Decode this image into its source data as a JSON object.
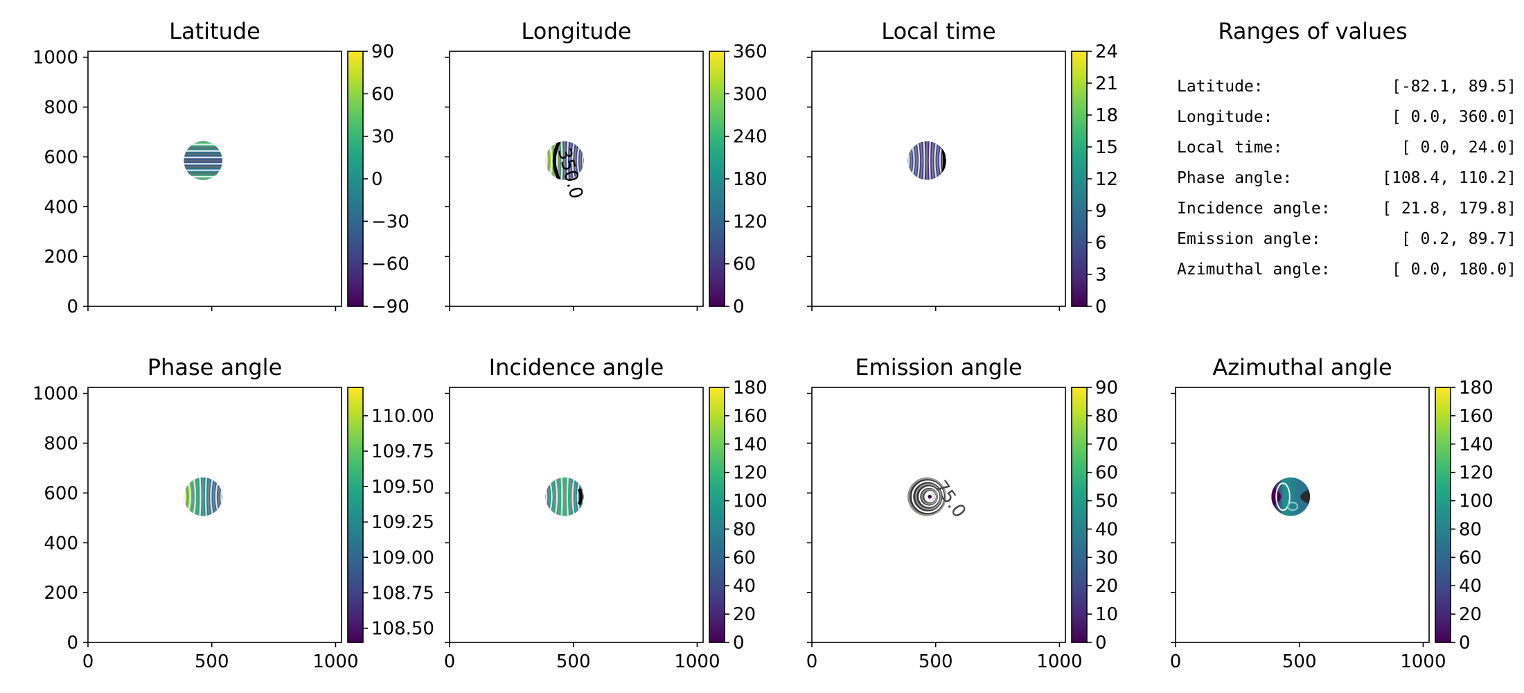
{
  "chart_data": [
    {
      "type": "heatmap",
      "title": "Latitude",
      "xlim": [
        0,
        1024
      ],
      "ylim": [
        0,
        1024
      ],
      "xticks": [
        0,
        500,
        1000
      ],
      "yticks": [
        0,
        200,
        400,
        600,
        800,
        1000
      ],
      "show_xticklabels": false,
      "show_yticklabels": true,
      "colorbar": {
        "range": [
          -90,
          90
        ],
        "ticks": [
          "90",
          "60",
          "30",
          "0",
          "−30",
          "−60",
          "−90"
        ],
        "tick_values": [
          90,
          60,
          30,
          0,
          -30,
          -60,
          -90
        ]
      },
      "disk": {
        "center": [
          465,
          585
        ],
        "radius": 78
      },
      "contour_orientation": "horizontal",
      "color_stops": [
        "#4cc26c",
        "#2a788e",
        "#3b528b",
        "#2a788e",
        "#4cc26c"
      ],
      "contour_labels": []
    },
    {
      "type": "heatmap",
      "title": "Longitude",
      "xlim": [
        0,
        1024
      ],
      "ylim": [
        0,
        1024
      ],
      "xticks": [
        0,
        500,
        1000
      ],
      "yticks": [
        0,
        200,
        400,
        600,
        800,
        1000
      ],
      "show_xticklabels": false,
      "show_yticklabels": false,
      "colorbar": {
        "range": [
          0,
          360
        ],
        "ticks": [
          "360",
          "300",
          "240",
          "180",
          "120",
          "60",
          "0"
        ],
        "tick_values": [
          360,
          300,
          240,
          180,
          120,
          60,
          0
        ]
      },
      "disk": {
        "center": [
          465,
          585
        ],
        "radius": 78
      },
      "contour_orientation": "vertical",
      "color_stops": [
        "#c8e020",
        "#7ad151",
        "#3b528b",
        "#414487",
        "#3b528b"
      ],
      "contour_labels": [
        "350.0"
      ]
    },
    {
      "type": "heatmap",
      "title": "Local time",
      "xlim": [
        0,
        1024
      ],
      "ylim": [
        0,
        1024
      ],
      "xticks": [
        0,
        500,
        1000
      ],
      "yticks": [
        0,
        200,
        400,
        600,
        800,
        1000
      ],
      "show_xticklabels": false,
      "show_yticklabels": false,
      "colorbar": {
        "range": [
          0,
          24
        ],
        "ticks": [
          "24",
          "21",
          "18",
          "15",
          "12",
          "9",
          "6",
          "3",
          "0"
        ],
        "tick_values": [
          24,
          21,
          18,
          15,
          12,
          9,
          6,
          3,
          0
        ]
      },
      "disk": {
        "center": [
          465,
          585
        ],
        "radius": 78
      },
      "contour_orientation": "vertical",
      "color_stops": [
        "#3b528b",
        "#3e4989",
        "#472d7b",
        "#3e4989",
        "#440154"
      ],
      "contour_labels": []
    },
    {
      "type": "heatmap",
      "title": "Phase angle",
      "xlim": [
        0,
        1024
      ],
      "ylim": [
        0,
        1024
      ],
      "xticks": [
        0,
        500,
        1000
      ],
      "yticks": [
        0,
        200,
        400,
        600,
        800,
        1000
      ],
      "show_xticklabels": true,
      "show_yticklabels": true,
      "colorbar": {
        "range": [
          108.4,
          110.2
        ],
        "ticks": [
          "110.00",
          "109.75",
          "109.50",
          "109.25",
          "109.00",
          "108.75",
          "108.50"
        ],
        "tick_values": [
          110.0,
          109.75,
          109.5,
          109.25,
          109.0,
          108.75,
          108.5
        ]
      },
      "disk": {
        "center": [
          465,
          585
        ],
        "radius": 78
      },
      "contour_orientation": "vertical",
      "color_stops": [
        "#bddf26",
        "#35b779",
        "#21918c",
        "#31688e",
        "#3b528b"
      ],
      "contour_labels": []
    },
    {
      "type": "heatmap",
      "title": "Incidence angle",
      "xlim": [
        0,
        1024
      ],
      "ylim": [
        0,
        1024
      ],
      "xticks": [
        0,
        500,
        1000
      ],
      "yticks": [
        0,
        200,
        400,
        600,
        800,
        1000
      ],
      "show_xticklabels": true,
      "show_yticklabels": false,
      "colorbar": {
        "range": [
          0,
          180
        ],
        "ticks": [
          "180",
          "160",
          "140",
          "120",
          "100",
          "80",
          "60",
          "40",
          "20",
          "0"
        ],
        "tick_values": [
          180,
          160,
          140,
          120,
          100,
          80,
          60,
          40,
          20,
          0
        ]
      },
      "disk": {
        "center": [
          465,
          585
        ],
        "radius": 78
      },
      "contour_orientation": "vertical",
      "color_stops": [
        "#2a788e",
        "#22a884",
        "#35b779",
        "#21918c",
        "#2a788e"
      ],
      "contour_labels": []
    },
    {
      "type": "heatmap",
      "title": "Emission angle",
      "xlim": [
        0,
        1024
      ],
      "ylim": [
        0,
        1024
      ],
      "xticks": [
        0,
        500,
        1000
      ],
      "yticks": [
        0,
        200,
        400,
        600,
        800,
        1000
      ],
      "show_xticklabels": true,
      "show_yticklabels": false,
      "colorbar": {
        "range": [
          0,
          90
        ],
        "ticks": [
          "90",
          "80",
          "70",
          "60",
          "50",
          "40",
          "30",
          "20",
          "10",
          "0"
        ],
        "tick_values": [
          90,
          80,
          70,
          60,
          50,
          40,
          30,
          20,
          10,
          0
        ]
      },
      "disk": {
        "center": [
          465,
          585
        ],
        "radius": 78
      },
      "contour_orientation": "concentric",
      "color_stops": [
        "#440154",
        "#35b779",
        "#bddf26",
        "#fde725"
      ],
      "contour_labels": [
        "75.0"
      ]
    },
    {
      "type": "heatmap",
      "title": "Azimuthal angle",
      "xlim": [
        0,
        1024
      ],
      "ylim": [
        0,
        1024
      ],
      "xticks": [
        0,
        500,
        1000
      ],
      "yticks": [
        0,
        200,
        400,
        600,
        800,
        1000
      ],
      "show_xticklabels": true,
      "show_yticklabels": false,
      "colorbar": {
        "range": [
          0,
          180
        ],
        "ticks": [
          "180",
          "160",
          "140",
          "120",
          "100",
          "80",
          "60",
          "40",
          "20",
          "0"
        ],
        "tick_values": [
          180,
          160,
          140,
          120,
          100,
          80,
          60,
          40,
          20,
          0
        ]
      },
      "disk": {
        "center": [
          465,
          585
        ],
        "radius": 78
      },
      "contour_orientation": "azimuthal",
      "color_stops": [
        "#440154",
        "#21918c",
        "#2a788e",
        "#31688e"
      ],
      "contour_labels": []
    }
  ],
  "ranges_panel": {
    "title": "Ranges of values",
    "rows": [
      {
        "label": "Latitude:",
        "value": "[-82.1,  89.5]"
      },
      {
        "label": "Longitude:",
        "value": "[  0.0, 360.0]"
      },
      {
        "label": "Local time:",
        "value": "[  0.0,  24.0]"
      },
      {
        "label": "Phase angle:",
        "value": "[108.4, 110.2]"
      },
      {
        "label": "Incidence angle:",
        "value": "[ 21.8, 179.8]"
      },
      {
        "label": "Emission angle:",
        "value": "[  0.2,  89.7]"
      },
      {
        "label": "Azimuthal angle:",
        "value": "[  0.0, 180.0]"
      }
    ]
  },
  "colormap": [
    "#440154",
    "#482475",
    "#414487",
    "#355f8d",
    "#2a788e",
    "#21918c",
    "#22a884",
    "#44bf70",
    "#7ad151",
    "#bddf26",
    "#fde725"
  ]
}
